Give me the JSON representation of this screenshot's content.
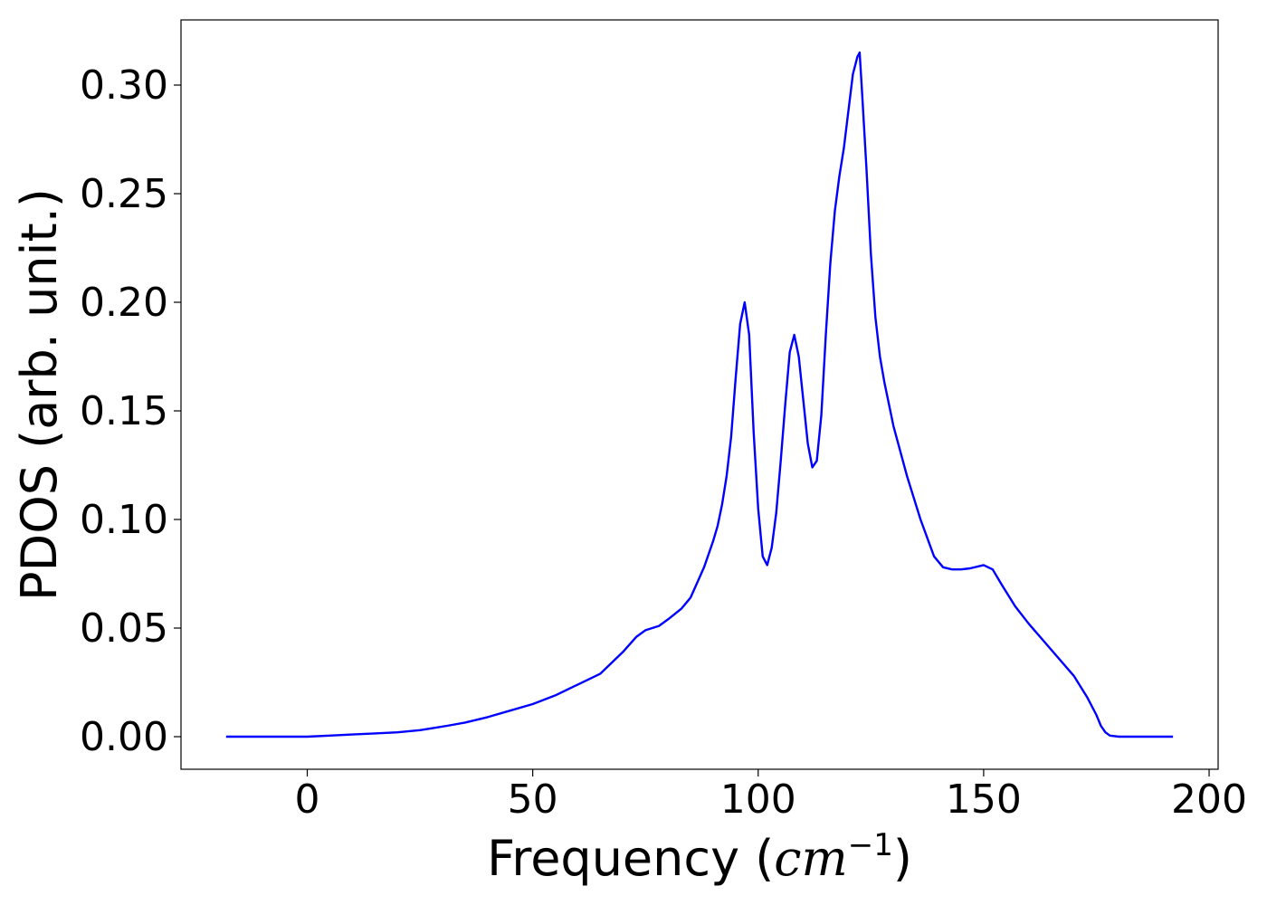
{
  "chart_data": {
    "type": "line",
    "title": "",
    "xlabel": "Frequency (cm⁻¹)",
    "xlabel_parts": {
      "text": "Frequency (",
      "unit_base": "cm",
      "unit_exp": "−1",
      "close": ")"
    },
    "ylabel": "PDOS (arb. unit.)",
    "xlim": [
      -28,
      202
    ],
    "ylim": [
      -0.015,
      0.33
    ],
    "x_ticks": [
      0,
      50,
      100,
      150,
      200
    ],
    "x_tick_labels": [
      "0",
      "50",
      "100",
      "150",
      "200"
    ],
    "y_ticks": [
      0.0,
      0.05,
      0.1,
      0.15,
      0.2,
      0.25,
      0.3
    ],
    "y_tick_labels": [
      "0.00",
      "0.05",
      "0.10",
      "0.15",
      "0.20",
      "0.25",
      "0.30"
    ],
    "grid": false,
    "legend": "none",
    "series": [
      {
        "color": "#0000ff",
        "x": [
          -18,
          0,
          5,
          10,
          15,
          20,
          25,
          28,
          31,
          35,
          40,
          45,
          50,
          55,
          60,
          65,
          70,
          73,
          75,
          78,
          80,
          83,
          85,
          88,
          90,
          91,
          92,
          93,
          94,
          95,
          96,
          97,
          98,
          99,
          100,
          101,
          102,
          103,
          104,
          105,
          106,
          107,
          108,
          109,
          110,
          111,
          112,
          113,
          114,
          115,
          116,
          117,
          118,
          119,
          120,
          121,
          122,
          122.5,
          123,
          124,
          125,
          126,
          127,
          128,
          130,
          133,
          136,
          139,
          141,
          143,
          145,
          147,
          150,
          152,
          154,
          157,
          160,
          165,
          170,
          173,
          175,
          176,
          177,
          178,
          180,
          185,
          190,
          192
        ],
        "y": [
          0.0,
          0.0,
          0.0005,
          0.001,
          0.0015,
          0.002,
          0.003,
          0.004,
          0.005,
          0.0065,
          0.009,
          0.012,
          0.015,
          0.019,
          0.024,
          0.029,
          0.039,
          0.046,
          0.049,
          0.051,
          0.054,
          0.059,
          0.064,
          0.078,
          0.09,
          0.097,
          0.107,
          0.12,
          0.138,
          0.165,
          0.19,
          0.2,
          0.185,
          0.14,
          0.105,
          0.083,
          0.079,
          0.087,
          0.103,
          0.127,
          0.153,
          0.177,
          0.185,
          0.175,
          0.155,
          0.135,
          0.124,
          0.127,
          0.148,
          0.185,
          0.218,
          0.242,
          0.258,
          0.271,
          0.288,
          0.305,
          0.313,
          0.315,
          0.298,
          0.262,
          0.222,
          0.193,
          0.175,
          0.163,
          0.143,
          0.12,
          0.1,
          0.083,
          0.078,
          0.077,
          0.077,
          0.0775,
          0.079,
          0.077,
          0.07,
          0.06,
          0.052,
          0.04,
          0.028,
          0.018,
          0.01,
          0.005,
          0.002,
          0.0005,
          0.0,
          0.0,
          0.0,
          0.0
        ]
      }
    ]
  }
}
